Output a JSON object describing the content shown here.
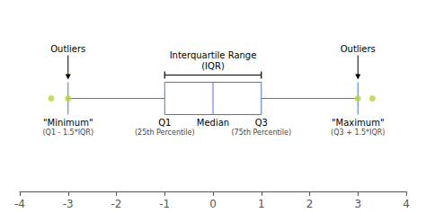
{
  "chart_data": {
    "type": "boxplot",
    "orientation": "horizontal",
    "whisker_low": -3,
    "q1": -1,
    "median": 0,
    "q3": 1,
    "whisker_high": 3,
    "outliers": [
      -3.35,
      -3.0,
      3.0,
      3.3
    ],
    "xlim": [
      -4,
      4
    ],
    "xticks": [
      -4,
      -3,
      -2,
      -1,
      0,
      1,
      2,
      3,
      4
    ],
    "tick_labels": "x",
    "grid": false,
    "annotations": [
      {
        "text": [
          "Interquartile Range",
          "(IQR)"
        ],
        "x": 0,
        "side": "above",
        "bracket": true
      },
      {
        "text": [
          "Outliers"
        ],
        "x": -3.0,
        "side": "above",
        "arrow": true
      },
      {
        "text": [
          "Outliers"
        ],
        "x": 3.0,
        "side": "above",
        "arrow": true
      },
      {
        "text": [
          "Q1",
          "(25th Percentile)"
        ],
        "x": -1,
        "side": "below"
      },
      {
        "text": [
          "Median"
        ],
        "x": 0,
        "side": "below"
      },
      {
        "text": [
          "Q3",
          "(75th Percentile)"
        ],
        "x": 1,
        "side": "below"
      },
      {
        "text": [
          "\"Minimum\"",
          "(Q1 - 1.5*IQR)"
        ],
        "x": -3,
        "side": "below"
      },
      {
        "text": [
          "\"Maximum\"",
          "(Q3 + 1.5*IQR)"
        ],
        "x": 3,
        "side": "below"
      }
    ]
  }
}
